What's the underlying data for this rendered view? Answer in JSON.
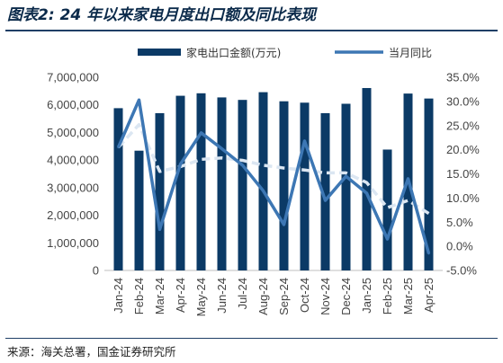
{
  "header": {
    "title": "图表2: 24 年以来家电月度出口额及同比表现"
  },
  "footer": {
    "source": "来源：海关总署，国金证券研究所"
  },
  "chart_data": {
    "type": "bar",
    "categories": [
      "Jan-24",
      "Feb-24",
      "Mar-24",
      "Apr-24",
      "May-24",
      "Jun-24",
      "Jul-24",
      "Aug-24",
      "Sep-24",
      "Oct-24",
      "Nov-24",
      "Dec-24",
      "Jan-25",
      "Feb-25",
      "Mar-25",
      "Apr-25"
    ],
    "series": [
      {
        "name": "家电出口金额(万元)",
        "kind": "bar",
        "axis": "left",
        "color": "#0b3a66",
        "values": [
          5880000,
          4340000,
          5700000,
          6330000,
          6420000,
          6270000,
          6180000,
          6460000,
          6130000,
          6080000,
          5700000,
          6040000,
          6610000,
          4380000,
          6410000,
          6230000
        ]
      },
      {
        "name": "当月同比",
        "kind": "line",
        "axis": "right",
        "color": "#3d77b4",
        "values": [
          20.5,
          30.3,
          3.5,
          17.0,
          23.5,
          20.2,
          16.8,
          11.5,
          4.5,
          21.8,
          9.5,
          14.5,
          11.0,
          1.5,
          14.0,
          -1.5
        ]
      },
      {
        "kind": "line",
        "axis": "right",
        "style": "dashed",
        "color": "#dbe6f2",
        "values": [
          20.5,
          25.2,
          15.5,
          16.5,
          18.0,
          18.3,
          17.8,
          16.8,
          16.2,
          15.8,
          15.2,
          15.2,
          13.2,
          8.0,
          9.5,
          6.8
        ]
      }
    ],
    "left_axis": {
      "ylim": [
        0,
        7000000
      ],
      "ticks": [
        0,
        1000000,
        2000000,
        3000000,
        4000000,
        5000000,
        6000000,
        7000000
      ],
      "tick_labels": [
        "0",
        "1,000,000",
        "2,000,000",
        "3,000,000",
        "4,000,000",
        "5,000,000",
        "6,000,000",
        "7,000,000"
      ]
    },
    "right_axis": {
      "ylim": [
        -5,
        35
      ],
      "ticks": [
        -5,
        0,
        5,
        10,
        15,
        20,
        25,
        30,
        35
      ],
      "tick_labels": [
        "-5.0%",
        "0.0%",
        "5.0%",
        "10.0%",
        "15.0%",
        "20.0%",
        "25.0%",
        "30.0%",
        "35.0%"
      ]
    },
    "grid": false,
    "legend_position": "top"
  }
}
